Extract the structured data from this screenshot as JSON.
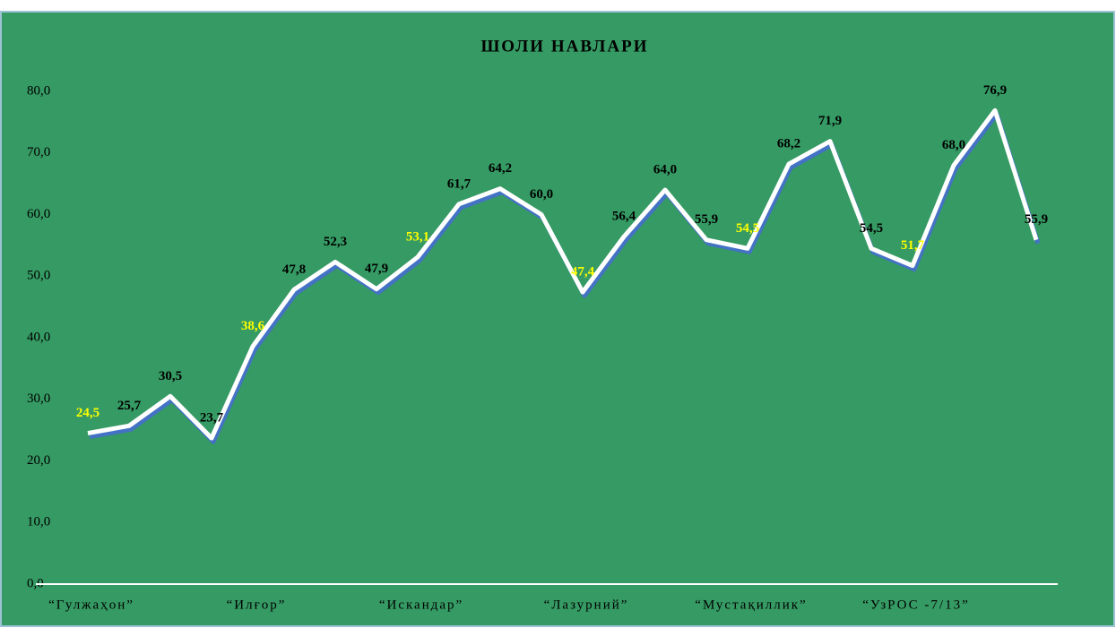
{
  "chart_data": {
    "type": "line",
    "title": "ШОЛИ НАВЛАРИ",
    "categories": [
      "“Гулжаҳон”",
      null,
      null,
      null,
      "“Илғор”",
      null,
      null,
      null,
      "“Искандар”",
      null,
      null,
      null,
      "“Лазурний”",
      null,
      null,
      null,
      "“Мустақиллик”",
      null,
      null,
      null,
      "“УзРОС -7/13”",
      null,
      null,
      null
    ],
    "values": [
      24.5,
      25.7,
      30.5,
      23.7,
      38.6,
      47.8,
      52.3,
      47.9,
      53.1,
      61.7,
      64.2,
      60.0,
      47.4,
      56.4,
      64.0,
      55.9,
      54.5,
      68.2,
      71.9,
      54.5,
      51.7,
      68.0,
      76.9,
      55.9
    ],
    "value_labels": [
      "24,5",
      "25,7",
      "30,5",
      "23,7",
      "38,6",
      "47,8",
      "52,3",
      "47,9",
      "53,1",
      "61,7",
      "64,2",
      "60,0",
      "47,4",
      "56,4",
      "64,0",
      "55,9",
      "54,5",
      "68,2",
      "71,9",
      "54,5",
      "51,7",
      "68,0",
      "76,9",
      "55,9"
    ],
    "value_label_colors": [
      "#ffff00",
      "#000000",
      "#000000",
      "#000000",
      "#ffff00",
      "#000000",
      "#000000",
      "#000000",
      "#ffff00",
      "#000000",
      "#000000",
      "#000000",
      "#ffff00",
      "#000000",
      "#000000",
      "#000000",
      "#ffff00",
      "#000000",
      "#000000",
      "#000000",
      "#ffff00",
      "#000000",
      "#000000",
      "#000000"
    ],
    "color": "#ffffff",
    "shadow_color": "#4472c4",
    "background": "#359a63",
    "ylim": [
      0,
      80
    ],
    "yticks": [
      {
        "value": 0,
        "label": "0,0"
      },
      {
        "value": 10,
        "label": "10,0"
      },
      {
        "value": 20,
        "label": "20,0"
      },
      {
        "value": 30,
        "label": "30,0"
      },
      {
        "value": 40,
        "label": "40,0"
      },
      {
        "value": 50,
        "label": "50,0"
      },
      {
        "value": 60,
        "label": "60,0"
      },
      {
        "value": 70,
        "label": "70,0"
      },
      {
        "value": 80,
        "label": "80,0"
      }
    ],
    "grid": false
  }
}
